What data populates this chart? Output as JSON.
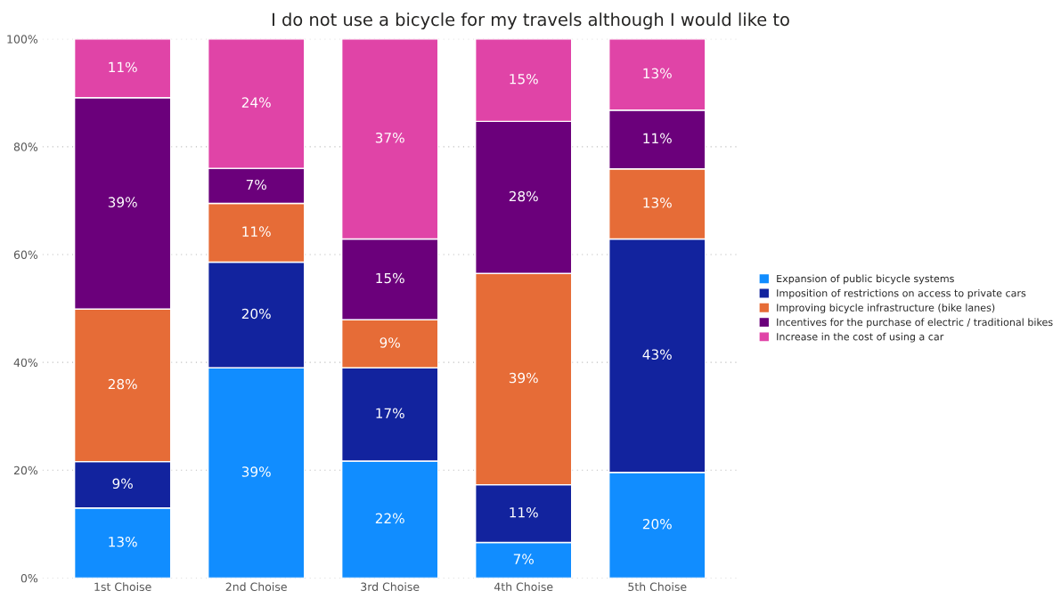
{
  "chart_data": {
    "type": "bar",
    "title": "I do not use a bicycle for my travels although I would like to",
    "categories": [
      "1st Choise",
      "2nd Choise",
      "3rd Choise",
      "4th Choise",
      "5th Choise"
    ],
    "stacked": true,
    "series": [
      {
        "name": "Expansion of public bicycle systems",
        "color": "#118dff",
        "values": [
          13.0,
          39.0,
          21.7,
          6.6,
          19.6
        ],
        "value_labels": [
          "13%",
          "39%",
          "22%",
          "7%",
          "20%"
        ]
      },
      {
        "name": "Imposition of restrictions on access to private cars",
        "color": "#12239e",
        "values": [
          8.6,
          19.6,
          17.3,
          10.7,
          43.3
        ],
        "value_labels": [
          "9%",
          "20%",
          "17%",
          "11%",
          "43%"
        ]
      },
      {
        "name": "Improving bicycle infrastructure (bike lanes)",
        "color": "#e66c37",
        "values": [
          28.3,
          10.9,
          8.9,
          39.2,
          13.0
        ],
        "value_labels": [
          "28%",
          "11%",
          "9%",
          "39%",
          "13%"
        ]
      },
      {
        "name": "Incentives for the purchase of electric / traditional bikes",
        "color": "#6b007b",
        "values": [
          39.2,
          6.5,
          15.0,
          28.2,
          10.9
        ],
        "value_labels": [
          "39%",
          "7%",
          "15%",
          "28%",
          "11%"
        ]
      },
      {
        "name": "Increase in the cost of using a car",
        "color": "#e044a7",
        "values": [
          10.9,
          24.0,
          37.1,
          15.3,
          13.2
        ],
        "value_labels": [
          "11%",
          "24%",
          "37%",
          "15%",
          "13%"
        ]
      }
    ],
    "ylim": [
      0,
      100
    ],
    "yticks": [
      {
        "value": 0,
        "label": "0%"
      },
      {
        "value": 20,
        "label": "20%"
      },
      {
        "value": 40,
        "label": "40%"
      },
      {
        "value": 60,
        "label": "60%"
      },
      {
        "value": 80,
        "label": "80%"
      },
      {
        "value": 100,
        "label": "100%"
      }
    ],
    "grid": "y",
    "legend": "right"
  }
}
